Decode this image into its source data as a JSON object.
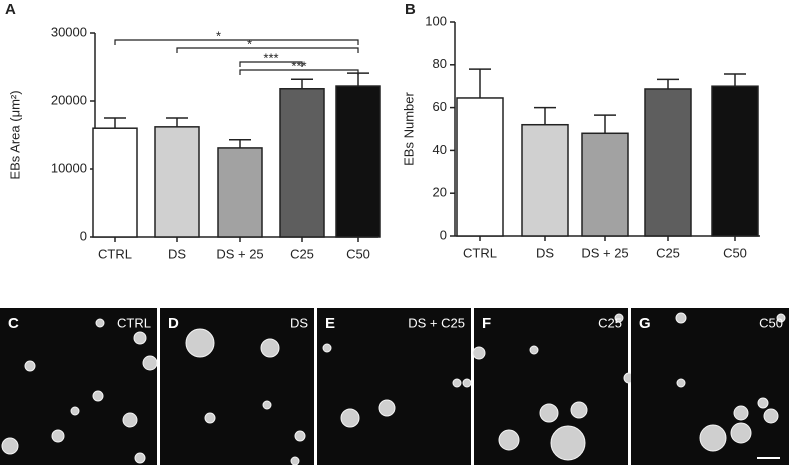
{
  "chart_data": [
    {
      "type": "bar",
      "panel_label": "A",
      "y_label": "EBs Area (μm²)",
      "categories": [
        "CTRL",
        "DS",
        "DS + 25",
        "C25",
        "C50"
      ],
      "values": [
        16000,
        16200,
        13100,
        21800,
        22200
      ],
      "errors": [
        1500,
        1300,
        1200,
        1400,
        1900
      ],
      "colors": [
        "#ffffff",
        "#d0d0d0",
        "#a2a2a2",
        "#5e5e5e",
        "#111111"
      ],
      "ylim": [
        0,
        30000
      ],
      "yticks": [
        0,
        10000,
        20000,
        30000
      ],
      "annotations": [
        "*",
        "*",
        "***",
        "***"
      ]
    },
    {
      "type": "bar",
      "panel_label": "B",
      "y_label": "EBs Number",
      "categories": [
        "CTRL",
        "DS",
        "DS + 25",
        "C25",
        "C50"
      ],
      "values": [
        64.5,
        52,
        48,
        68.7,
        70
      ],
      "errors": [
        13.5,
        8,
        8.5,
        4.5,
        5.7
      ],
      "colors": [
        "#ffffff",
        "#d0d0d0",
        "#a2a2a2",
        "#5e5e5e",
        "#111111"
      ],
      "ylim": [
        0,
        100
      ],
      "yticks": [
        0,
        20,
        40,
        60,
        80,
        100
      ]
    }
  ],
  "image_panels": [
    {
      "letter": "C",
      "label": "CTRL"
    },
    {
      "letter": "D",
      "label": "DS"
    },
    {
      "letter": "E",
      "label": "DS + C25"
    },
    {
      "letter": "F",
      "label": "C25"
    },
    {
      "letter": "G",
      "label": "C50"
    }
  ]
}
